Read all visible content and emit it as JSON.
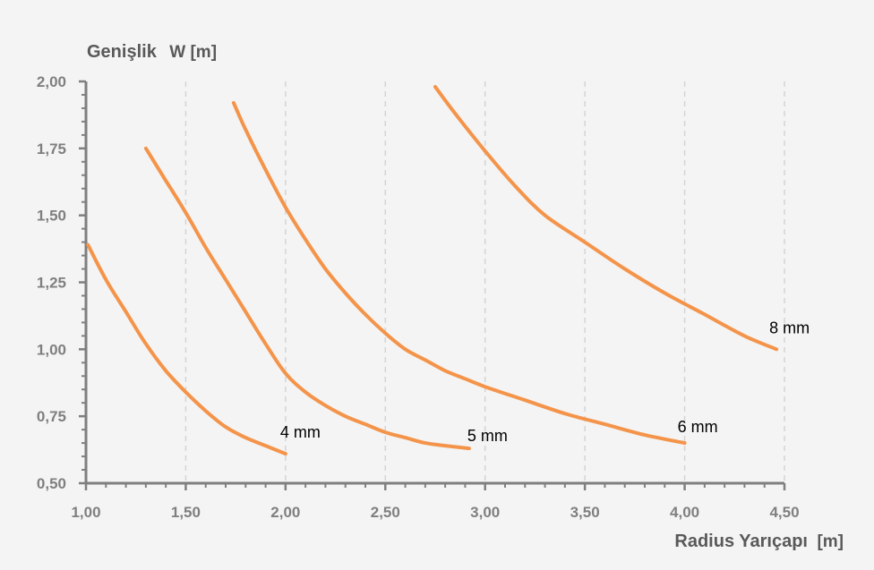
{
  "chart_data": {
    "type": "line",
    "ylabel": {
      "main": "Genişlik",
      "unit": "W [m]"
    },
    "xlabel": {
      "main": "Radius Yarıçapı",
      "unit": "[m]"
    },
    "xlim": [
      1.0,
      4.5
    ],
    "ylim": [
      0.5,
      2.0
    ],
    "x_ticks": [
      1.0,
      1.5,
      2.0,
      2.5,
      3.0,
      3.5,
      4.0,
      4.5
    ],
    "x_tick_labels": [
      "1,00",
      "1,50",
      "2,00",
      "2,50",
      "3,00",
      "3,50",
      "4,00",
      "4,50"
    ],
    "y_ticks": [
      0.5,
      0.75,
      1.0,
      1.25,
      1.5,
      1.75,
      2.0
    ],
    "y_tick_labels": [
      "0,50",
      "0,75",
      "1,00",
      "1,25",
      "1,50",
      "1,75",
      "2,00"
    ],
    "grid": {
      "vertical": true,
      "horizontal": false,
      "style": "dashed"
    },
    "series_color": "#f4944a",
    "series": [
      {
        "name": "4 mm",
        "x": [
          1.01,
          1.1,
          1.2,
          1.3,
          1.4,
          1.5,
          1.6,
          1.7,
          1.8,
          1.9,
          2.0
        ],
        "y": [
          1.39,
          1.26,
          1.14,
          1.02,
          0.92,
          0.84,
          0.77,
          0.71,
          0.67,
          0.64,
          0.61
        ]
      },
      {
        "name": "5 mm",
        "x": [
          1.3,
          1.4,
          1.5,
          1.6,
          1.7,
          1.8,
          1.9,
          2.0,
          2.1,
          2.2,
          2.3,
          2.4,
          2.5,
          2.6,
          2.7,
          2.8,
          2.92
        ],
        "y": [
          1.75,
          1.63,
          1.51,
          1.38,
          1.26,
          1.14,
          1.02,
          0.91,
          0.84,
          0.79,
          0.75,
          0.72,
          0.69,
          0.67,
          0.65,
          0.64,
          0.63
        ]
      },
      {
        "name": "6 mm",
        "x": [
          1.74,
          1.8,
          1.9,
          2.0,
          2.1,
          2.2,
          2.3,
          2.4,
          2.5,
          2.6,
          2.7,
          2.8,
          2.9,
          3.0,
          3.2,
          3.4,
          3.6,
          3.8,
          4.0
        ],
        "y": [
          1.92,
          1.82,
          1.67,
          1.53,
          1.41,
          1.3,
          1.21,
          1.13,
          1.06,
          1.0,
          0.96,
          0.92,
          0.89,
          0.86,
          0.81,
          0.76,
          0.72,
          0.68,
          0.65
        ]
      },
      {
        "name": "8 mm",
        "x": [
          2.75,
          2.85,
          3.0,
          3.15,
          3.3,
          3.5,
          3.7,
          3.9,
          4.1,
          4.3,
          4.46
        ],
        "y": [
          1.98,
          1.88,
          1.74,
          1.61,
          1.5,
          1.4,
          1.3,
          1.21,
          1.13,
          1.05,
          1.0
        ]
      }
    ]
  }
}
